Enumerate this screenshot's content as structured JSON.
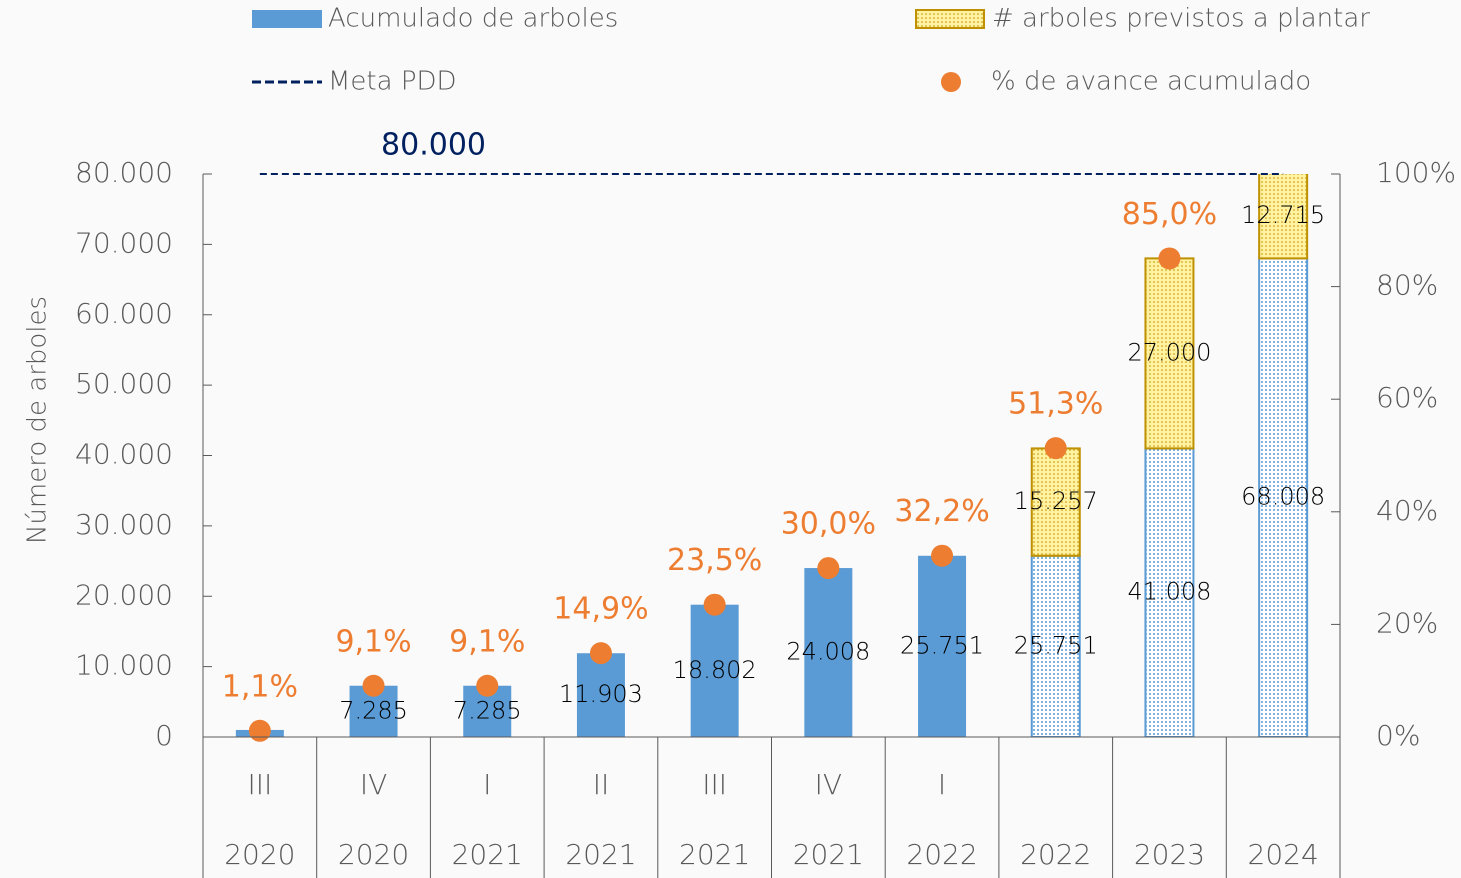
{
  "chart_data": {
    "type": "bar",
    "y_label": "Número de arboles",
    "categories": [
      "III",
      "IV",
      "I",
      "II",
      "III",
      "IV",
      "I",
      null,
      null,
      null
    ],
    "years": [
      "2020",
      "2020",
      "2021",
      "2021",
      "2021",
      "2021",
      "2022",
      "2022",
      "2023",
      "2024"
    ],
    "ylim": [
      0,
      80000
    ],
    "yticks": [
      0,
      {
        "value": 10000,
        "label": "10.000"
      },
      {
        "value": 20000,
        "label": "20.000"
      },
      {
        "value": 30000,
        "label": "30.000"
      },
      {
        "value": 40000,
        "label": "40.000"
      },
      {
        "value": 50000,
        "label": "50.000"
      },
      {
        "value": 60000,
        "label": "60.000"
      },
      {
        "value": 70000,
        "label": "70.000"
      },
      {
        "value": 80000,
        "label": "80.000"
      }
    ],
    "y2lim": [
      0,
      100
    ],
    "y2ticks": [
      {
        "value": 0,
        "label": "0%"
      },
      {
        "value": 20,
        "label": "20%"
      },
      {
        "value": 40,
        "label": "40%"
      },
      {
        "value": 60,
        "label": "60%"
      },
      {
        "value": 80,
        "label": "80%"
      },
      {
        "value": 100,
        "label": "100%"
      }
    ],
    "series": [
      {
        "name": "Acumulado de arboles",
        "type": "bar",
        "color": "#5b9bd5",
        "values": [
          1000,
          7285,
          7285,
          11903,
          18802,
          24008,
          25751,
          25751,
          41008,
          68008
        ],
        "value_labels": [
          null,
          "7.285",
          "7.285",
          "11.903",
          "18.802",
          "24.008",
          "25.751",
          "25.751",
          "41.008",
          "68.008"
        ]
      },
      {
        "name": "# arboles previstos a plantar",
        "type": "stacked-bar",
        "color": "#fff2a0",
        "border": "#bf9000",
        "values": [
          null,
          null,
          null,
          null,
          null,
          null,
          null,
          15257,
          27000,
          12715
        ],
        "value_labels": [
          null,
          null,
          null,
          null,
          null,
          null,
          null,
          "15.257",
          "27.000",
          "12.715"
        ]
      },
      {
        "name": "Meta PDD",
        "type": "dashed-line",
        "color": "#002060",
        "values": [
          80000,
          80000,
          80000,
          80000,
          80000,
          80000,
          80000,
          80000,
          80000,
          80000
        ],
        "value_labels": [
          null,
          "80.000",
          null,
          null,
          null,
          null,
          null,
          null,
          null,
          null
        ]
      },
      {
        "name": "% de avance acumulado",
        "type": "scatter",
        "axis": "y2",
        "color": "#ed7d31",
        "values": [
          1.1,
          9.1,
          9.1,
          14.9,
          23.5,
          30.0,
          32.2,
          51.3,
          85.0,
          null
        ],
        "value_labels": [
          "1,1%",
          "9,1%",
          "9,1%",
          "14,9%",
          "23,5%",
          "30,0%",
          "32,2%",
          "51,3%",
          "85,0%",
          null
        ]
      }
    ]
  }
}
